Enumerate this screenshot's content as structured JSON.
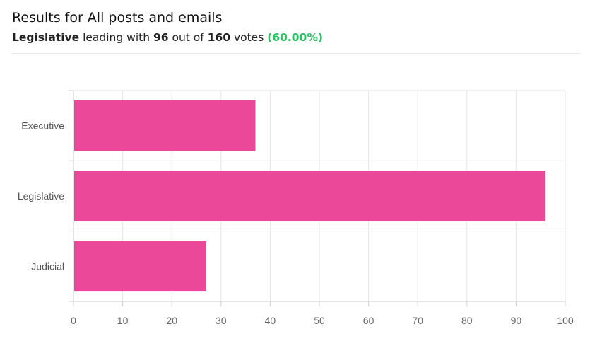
{
  "header": {
    "title": "Results for All posts and emails",
    "leader": "Legislative",
    "leading_text": " leading with ",
    "leader_votes": "96",
    "out_of_text": " out of ",
    "total_votes": "160",
    "votes_text": " votes ",
    "percent": "(60.00%)"
  },
  "colors": {
    "bar": "#ec4899",
    "percent": "#22c55e"
  },
  "chart_data": {
    "type": "bar",
    "orientation": "horizontal",
    "categories": [
      "Executive",
      "Legislative",
      "Judicial"
    ],
    "values": [
      37,
      96,
      27
    ],
    "xlim": [
      0,
      100
    ],
    "xticks": [
      0,
      10,
      20,
      30,
      40,
      50,
      60,
      70,
      80,
      90,
      100
    ],
    "grid": true
  }
}
